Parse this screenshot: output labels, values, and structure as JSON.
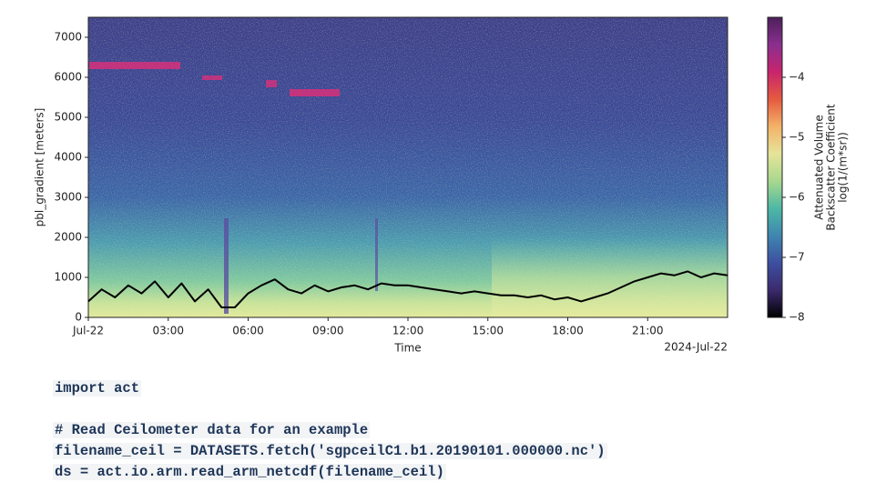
{
  "chart_data": {
    "type": "line",
    "x_label": "Time",
    "y_label": "pbl_gradient [meters]",
    "x_offset_label": "2024-Jul-22",
    "x": [
      0,
      0.5,
      1,
      1.5,
      2,
      2.5,
      3,
      3.5,
      4,
      4.5,
      5,
      5.5,
      6,
      6.5,
      7,
      7.5,
      8,
      8.5,
      9,
      9.5,
      10,
      10.5,
      11,
      11.5,
      12,
      12.5,
      13,
      13.5,
      14,
      14.5,
      15,
      15.5,
      16,
      16.5,
      17,
      17.5,
      18,
      18.5,
      19,
      19.5,
      20,
      20.5,
      21,
      21.5,
      22,
      22.5,
      23,
      23.5,
      24
    ],
    "series": [
      {
        "color": "#000000",
        "values": [
          400,
          700,
          500,
          800,
          600,
          900,
          500,
          850,
          400,
          700,
          250,
          250,
          600,
          800,
          950,
          700,
          600,
          800,
          650,
          750,
          800,
          700,
          850,
          800,
          800,
          750,
          700,
          650,
          600,
          650,
          600,
          550,
          550,
          500,
          550,
          450,
          500,
          400,
          500,
          600,
          750,
          900,
          1000,
          1100,
          1050,
          1150,
          1000,
          1100,
          1050
        ]
      }
    ],
    "xlim": [
      0,
      24
    ],
    "xticks": [
      {
        "value": 0,
        "label": "Jul-22"
      },
      {
        "value": 3,
        "label": "03:00"
      },
      {
        "value": 6,
        "label": "06:00"
      },
      {
        "value": 9,
        "label": "09:00"
      },
      {
        "value": 12,
        "label": "12:00"
      },
      {
        "value": 15,
        "label": "15:00"
      },
      {
        "value": 18,
        "label": "18:00"
      },
      {
        "value": 21,
        "label": "21:00"
      }
    ],
    "ylim": [
      0,
      7500
    ],
    "yticks": [
      0,
      1000,
      2000,
      3000,
      4000,
      5000,
      6000,
      7000
    ],
    "colorbar_label": [
      "Attenuated Volume",
      "Backscatter Coefficient",
      "log(1/(m*sr))"
    ],
    "clim": [
      -8,
      -3
    ],
    "cticks": [
      {
        "value": -8,
        "label": "−8"
      },
      {
        "value": -7,
        "label": "−7"
      },
      {
        "value": -6,
        "label": "−6"
      },
      {
        "value": -5,
        "label": "−5"
      },
      {
        "value": -4,
        "label": "−4"
      }
    ],
    "colormap": [
      "#000000",
      "#3b2a6e",
      "#3d4fa0",
      "#3f86b0",
      "#4db8a4",
      "#a8d88e",
      "#e6e49a",
      "#f3b268",
      "#e55a3f",
      "#c8246e",
      "#8a2f8f",
      "#4c1f5a"
    ]
  },
  "code": {
    "lines": [
      "import act",
      "",
      "# Read Ceilometer data for an example",
      "filename_ceil = DATASETS.fetch('sgpceilC1.b1.20190101.000000.nc')",
      "ds = act.io.arm.read_arm_netcdf(filename_ceil)"
    ]
  }
}
